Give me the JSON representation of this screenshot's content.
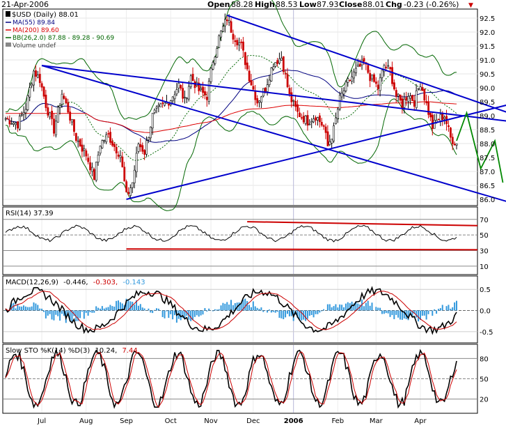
{
  "header": {
    "date": "21-Apr-2006",
    "open_label": "Open",
    "open": "88.28",
    "high_label": "High",
    "high": "88.53",
    "low_label": "Low",
    "low": "87.93",
    "close_label": "Close",
    "close": "88.01",
    "chg_label": "Chg",
    "chg": "-0.23 (-0.26%)",
    "chg_arrow": "▼"
  },
  "legend": {
    "symbol": "$USD (Daily) 88.01",
    "ma55": "MA(55) 89.84",
    "ma200": "MA(200) 89.60",
    "bb": "BB(26,2.0) 87.88 - 89.28 - 90.69",
    "volume": "Volume undef"
  },
  "colors": {
    "up": "#000000",
    "down": "#cc0000",
    "ma55": "#000080",
    "ma200": "#dd0000",
    "bb": "#006600",
    "trend": "#0000cc",
    "rsi_line": "#cc0000",
    "macd_hist": "#3399dd",
    "arrow": "#008800"
  },
  "chart_data": [
    {
      "type": "candlestick",
      "title": "$USD (Daily) 88.01",
      "ylim": [
        85.8,
        92.8
      ],
      "y_ticks": [
        "92.5",
        "92.0",
        "91.5",
        "91.0",
        "90.5",
        "90.0",
        "89.5",
        "89.0",
        "88.5",
        "88.0",
        "87.5",
        "87.0",
        "86.5",
        "86.0"
      ],
      "y_tick_values": [
        92.5,
        92.0,
        91.5,
        91.0,
        90.5,
        90.0,
        89.5,
        89.0,
        88.5,
        88.0,
        87.5,
        87.0,
        86.5,
        86.0
      ],
      "months": [
        "Jul",
        "Aug",
        "Sep",
        "Oct",
        "Nov",
        "Dec",
        "2006",
        "Feb",
        "Mar",
        "Apr"
      ],
      "month_start_index": [
        18,
        40,
        60,
        82,
        102,
        123,
        143,
        165,
        184,
        206
      ],
      "bar_count": 225,
      "key_closes": [
        [
          0,
          88.9
        ],
        [
          6,
          88.7
        ],
        [
          10,
          89.3
        ],
        [
          14,
          90.6
        ],
        [
          17,
          90.3
        ],
        [
          20,
          89.4
        ],
        [
          24,
          88.5
        ],
        [
          28,
          89.8
        ],
        [
          31,
          89.2
        ],
        [
          35,
          88.2
        ],
        [
          40,
          87.6
        ],
        [
          44,
          86.8
        ],
        [
          47,
          88.0
        ],
        [
          51,
          88.3
        ],
        [
          54,
          87.9
        ],
        [
          57,
          87.6
        ],
        [
          60,
          86.1
        ],
        [
          63,
          86.6
        ],
        [
          66,
          88.0
        ],
        [
          69,
          87.7
        ],
        [
          73,
          89.0
        ],
        [
          77,
          89.3
        ],
        [
          82,
          89.6
        ],
        [
          86,
          90.1
        ],
        [
          89,
          89.5
        ],
        [
          92,
          90.4
        ],
        [
          96,
          89.9
        ],
        [
          100,
          89.7
        ],
        [
          103,
          91.0
        ],
        [
          106,
          91.8
        ],
        [
          110,
          92.5
        ],
        [
          113,
          91.9
        ],
        [
          117,
          91.5
        ],
        [
          121,
          90.4
        ],
        [
          125,
          89.5
        ],
        [
          129,
          90.0
        ],
        [
          133,
          90.9
        ],
        [
          137,
          91.1
        ],
        [
          141,
          89.7
        ],
        [
          145,
          89.1
        ],
        [
          150,
          88.8
        ],
        [
          154,
          89.0
        ],
        [
          158,
          88.6
        ],
        [
          160,
          87.9
        ],
        [
          163,
          88.5
        ],
        [
          166,
          89.6
        ],
        [
          170,
          90.2
        ],
        [
          174,
          90.6
        ],
        [
          178,
          90.9
        ],
        [
          181,
          90.4
        ],
        [
          185,
          90.0
        ],
        [
          188,
          90.8
        ],
        [
          191,
          90.6
        ],
        [
          194,
          89.7
        ],
        [
          197,
          89.4
        ],
        [
          200,
          89.8
        ],
        [
          203,
          89.5
        ],
        [
          206,
          90.2
        ],
        [
          209,
          89.4
        ],
        [
          212,
          88.6
        ],
        [
          215,
          88.9
        ],
        [
          218,
          89.0
        ],
        [
          221,
          88.2
        ],
        [
          224,
          88.0
        ]
      ],
      "annotations": [
        "Blue upper channel line from Nov high",
        "Blue lower channel line",
        "Blue rising trendline from Sep low",
        "Green projected zig-zag arrow"
      ]
    },
    {
      "type": "line",
      "title": "RSI(14) 37.39",
      "ylim": [
        0,
        85
      ],
      "y_ticks": [
        "70",
        "50",
        "30",
        "10"
      ],
      "y_tick_values": [
        70,
        50,
        30,
        10
      ]
    },
    {
      "type": "line",
      "title": "MACD(12,26,9) -0.446, -0.303, -0.143",
      "ylim": [
        -0.75,
        0.8
      ],
      "y_ticks": [
        "0.5",
        "0.0",
        "-0.5"
      ],
      "y_tick_values": [
        0.5,
        0.0,
        -0.5
      ]
    },
    {
      "type": "line",
      "title": "Slow STO %K(14) %D(3) 10.24, 7.44",
      "ylim": [
        0,
        100
      ],
      "y_ticks": [
        "80",
        "50",
        "20"
      ],
      "y_tick_values": [
        80,
        50,
        20
      ]
    }
  ],
  "panels_text": {
    "rsi_title": "RSI(14) 37.39",
    "macd_prefix": "MACD(12,26,9)",
    "macd_v1": "-0.446,",
    "macd_v2": "-0.303,",
    "macd_v3": "-0.143",
    "sto_prefix": "Slow STO %K(14) %D(3)",
    "sto_v1": "10.24,",
    "sto_v2": "7.44"
  }
}
